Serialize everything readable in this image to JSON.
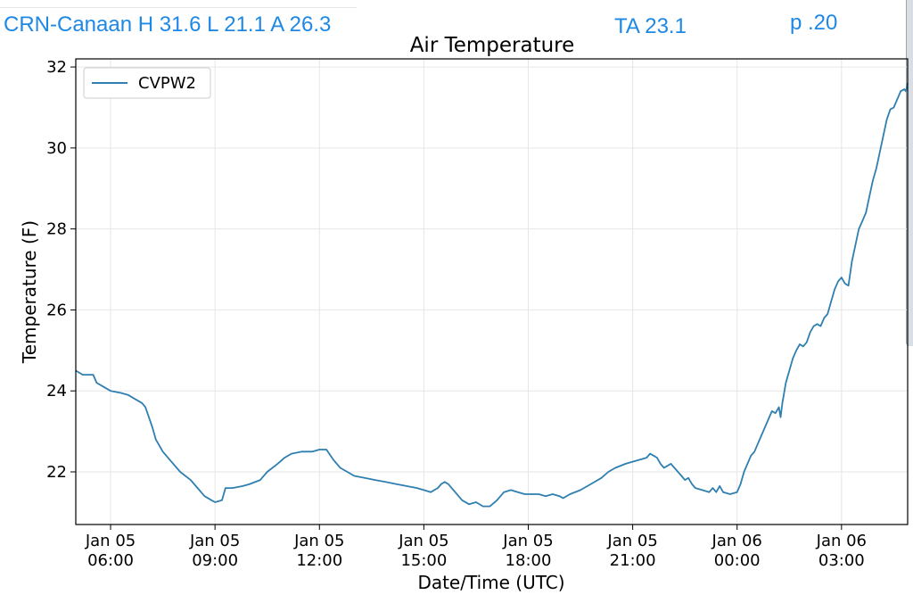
{
  "annotations": {
    "station": "CRN-Canaan H 31.6 L 21.1 A 26.3",
    "ta": "TA 23.1",
    "page": "p .20"
  },
  "colors": {
    "annotation": "#1e88e5",
    "series": "#2f7fb0"
  },
  "chart_data": {
    "type": "line",
    "title": "Air Temperature",
    "xlabel": "Date/Time (UTC)",
    "ylabel": "Temperature (F)",
    "x_unit": "hours since Jan 05 00:00 UTC",
    "xlim": [
      5.0,
      28.9
    ],
    "ylim": [
      20.7,
      32.2
    ],
    "yticks": [
      22,
      24,
      26,
      28,
      30,
      32
    ],
    "xticks": [
      {
        "x": 6,
        "date": "Jan 05",
        "time": "06:00"
      },
      {
        "x": 9,
        "date": "Jan 05",
        "time": "09:00"
      },
      {
        "x": 12,
        "date": "Jan 05",
        "time": "12:00"
      },
      {
        "x": 15,
        "date": "Jan 05",
        "time": "15:00"
      },
      {
        "x": 18,
        "date": "Jan 05",
        "time": "18:00"
      },
      {
        "x": 21,
        "date": "Jan 05",
        "time": "21:00"
      },
      {
        "x": 24,
        "date": "Jan 06",
        "time": "00:00"
      },
      {
        "x": 27,
        "date": "Jan 06",
        "time": "03:00"
      }
    ],
    "grid": true,
    "legend": {
      "placement": "top-left"
    },
    "series": [
      {
        "name": "CVPW2",
        "points": [
          [
            5.0,
            24.5
          ],
          [
            5.2,
            24.4
          ],
          [
            5.5,
            24.4
          ],
          [
            5.6,
            24.2
          ],
          [
            5.8,
            24.1
          ],
          [
            6.0,
            24.0
          ],
          [
            6.3,
            23.95
          ],
          [
            6.5,
            23.9
          ],
          [
            6.7,
            23.8
          ],
          [
            6.9,
            23.7
          ],
          [
            7.0,
            23.6
          ],
          [
            7.2,
            23.1
          ],
          [
            7.3,
            22.8
          ],
          [
            7.5,
            22.5
          ],
          [
            7.7,
            22.3
          ],
          [
            8.0,
            22.0
          ],
          [
            8.3,
            21.8
          ],
          [
            8.5,
            21.6
          ],
          [
            8.7,
            21.4
          ],
          [
            8.9,
            21.3
          ],
          [
            9.0,
            21.25
          ],
          [
            9.2,
            21.3
          ],
          [
            9.3,
            21.6
          ],
          [
            9.5,
            21.6
          ],
          [
            9.8,
            21.65
          ],
          [
            10.0,
            21.7
          ],
          [
            10.3,
            21.8
          ],
          [
            10.5,
            22.0
          ],
          [
            10.8,
            22.2
          ],
          [
            11.0,
            22.35
          ],
          [
            11.2,
            22.45
          ],
          [
            11.5,
            22.5
          ],
          [
            11.8,
            22.5
          ],
          [
            12.0,
            22.55
          ],
          [
            12.2,
            22.55
          ],
          [
            12.4,
            22.3
          ],
          [
            12.6,
            22.1
          ],
          [
            12.8,
            22.0
          ],
          [
            13.0,
            21.9
          ],
          [
            13.3,
            21.85
          ],
          [
            13.6,
            21.8
          ],
          [
            13.9,
            21.75
          ],
          [
            14.2,
            21.7
          ],
          [
            14.5,
            21.65
          ],
          [
            14.8,
            21.6
          ],
          [
            15.0,
            21.55
          ],
          [
            15.2,
            21.5
          ],
          [
            15.4,
            21.6
          ],
          [
            15.5,
            21.7
          ],
          [
            15.6,
            21.75
          ],
          [
            15.7,
            21.7
          ],
          [
            15.9,
            21.5
          ],
          [
            16.1,
            21.3
          ],
          [
            16.3,
            21.2
          ],
          [
            16.5,
            21.25
          ],
          [
            16.7,
            21.15
          ],
          [
            16.9,
            21.15
          ],
          [
            17.1,
            21.3
          ],
          [
            17.3,
            21.5
          ],
          [
            17.5,
            21.55
          ],
          [
            17.7,
            21.5
          ],
          [
            17.9,
            21.45
          ],
          [
            18.1,
            21.45
          ],
          [
            18.3,
            21.45
          ],
          [
            18.5,
            21.4
          ],
          [
            18.7,
            21.45
          ],
          [
            18.9,
            21.4
          ],
          [
            19.0,
            21.35
          ],
          [
            19.2,
            21.45
          ],
          [
            19.5,
            21.55
          ],
          [
            19.8,
            21.7
          ],
          [
            20.1,
            21.85
          ],
          [
            20.3,
            22.0
          ],
          [
            20.5,
            22.1
          ],
          [
            20.8,
            22.2
          ],
          [
            21.0,
            22.25
          ],
          [
            21.2,
            22.3
          ],
          [
            21.4,
            22.35
          ],
          [
            21.5,
            22.45
          ],
          [
            21.6,
            22.4
          ],
          [
            21.7,
            22.35
          ],
          [
            21.8,
            22.2
          ],
          [
            21.9,
            22.1
          ],
          [
            22.0,
            22.15
          ],
          [
            22.1,
            22.2
          ],
          [
            22.2,
            22.1
          ],
          [
            22.3,
            22.0
          ],
          [
            22.4,
            21.9
          ],
          [
            22.5,
            21.8
          ],
          [
            22.6,
            21.85
          ],
          [
            22.7,
            21.7
          ],
          [
            22.8,
            21.6
          ],
          [
            23.0,
            21.55
          ],
          [
            23.2,
            21.5
          ],
          [
            23.3,
            21.6
          ],
          [
            23.4,
            21.5
          ],
          [
            23.5,
            21.65
          ],
          [
            23.6,
            21.5
          ],
          [
            23.8,
            21.45
          ],
          [
            24.0,
            21.5
          ],
          [
            24.1,
            21.7
          ],
          [
            24.2,
            22.0
          ],
          [
            24.3,
            22.2
          ],
          [
            24.4,
            22.4
          ],
          [
            24.5,
            22.5
          ],
          [
            24.6,
            22.7
          ],
          [
            24.7,
            22.9
          ],
          [
            24.8,
            23.1
          ],
          [
            24.9,
            23.3
          ],
          [
            25.0,
            23.5
          ],
          [
            25.1,
            23.45
          ],
          [
            25.2,
            23.6
          ],
          [
            25.25,
            23.35
          ],
          [
            25.3,
            23.7
          ],
          [
            25.4,
            24.2
          ],
          [
            25.5,
            24.5
          ],
          [
            25.6,
            24.8
          ],
          [
            25.7,
            25.0
          ],
          [
            25.8,
            25.15
          ],
          [
            25.9,
            25.1
          ],
          [
            26.0,
            25.2
          ],
          [
            26.1,
            25.45
          ],
          [
            26.2,
            25.6
          ],
          [
            26.3,
            25.65
          ],
          [
            26.4,
            25.6
          ],
          [
            26.5,
            25.8
          ],
          [
            26.6,
            25.9
          ],
          [
            26.7,
            26.2
          ],
          [
            26.8,
            26.5
          ],
          [
            26.9,
            26.7
          ],
          [
            27.0,
            26.8
          ],
          [
            27.1,
            26.65
          ],
          [
            27.2,
            26.6
          ],
          [
            27.3,
            27.2
          ],
          [
            27.4,
            27.6
          ],
          [
            27.5,
            28.0
          ],
          [
            27.6,
            28.2
          ],
          [
            27.7,
            28.4
          ],
          [
            27.8,
            28.8
          ],
          [
            27.9,
            29.2
          ],
          [
            28.0,
            29.5
          ],
          [
            28.1,
            29.9
          ],
          [
            28.2,
            30.3
          ],
          [
            28.3,
            30.7
          ],
          [
            28.4,
            30.95
          ],
          [
            28.5,
            31.0
          ],
          [
            28.6,
            31.2
          ],
          [
            28.7,
            31.4
          ],
          [
            28.8,
            31.45
          ],
          [
            28.85,
            31.4
          ],
          [
            28.9,
            31.6
          ]
        ]
      }
    ]
  }
}
